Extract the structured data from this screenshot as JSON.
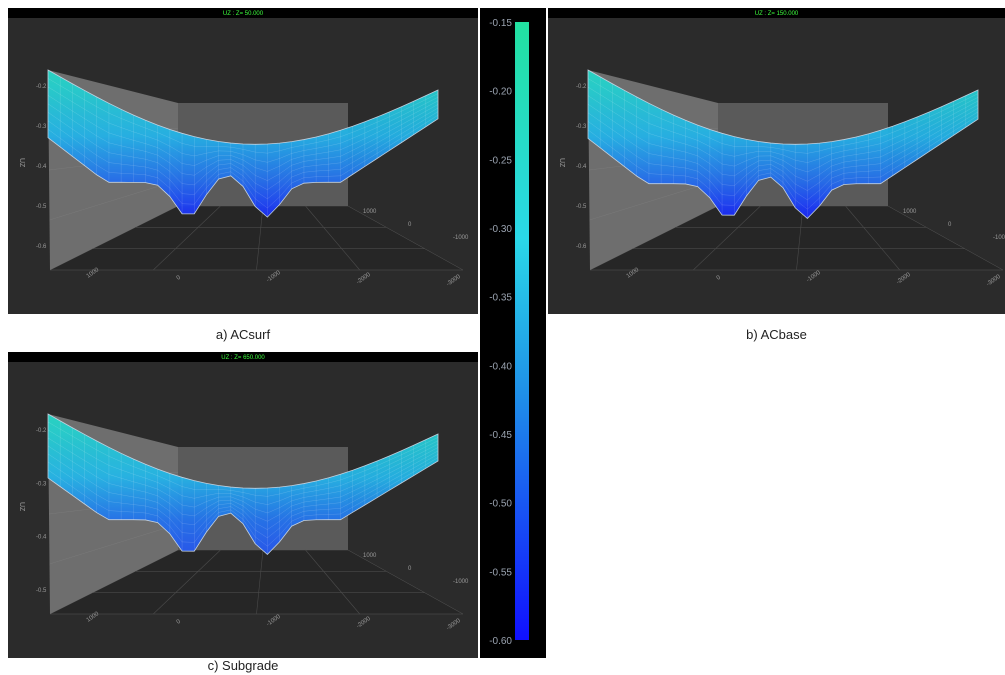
{
  "panels": [
    {
      "id": "a",
      "caption": "a) ACsurf",
      "header": "UZ : Z= 50.000",
      "z_axis_label": "UZ",
      "z_ticks": [
        "-0.2",
        "-0.3",
        "-0.4",
        "-0.5",
        "-0.6"
      ],
      "x_ticks": [
        "1000",
        "0",
        "-1000",
        "-2000",
        "-3000"
      ],
      "y_ticks": [
        "1000",
        "0",
        "-1000"
      ],
      "max_deflection": -0.52,
      "edge_deflection": -0.19
    },
    {
      "id": "b",
      "caption": "b) ACbase",
      "header": "UZ : Z= 150.000",
      "z_axis_label": "UZ",
      "z_ticks": [
        "-0.2",
        "-0.3",
        "-0.4",
        "-0.5",
        "-0.6"
      ],
      "x_ticks": [
        "1000",
        "0",
        "-1000",
        "-2000",
        "-3000"
      ],
      "y_ticks": [
        "1000",
        "0",
        "-1000"
      ],
      "max_deflection": -0.53,
      "edge_deflection": -0.19
    },
    {
      "id": "c",
      "caption": "c) Subgrade",
      "header": "UZ : Z= 650.000",
      "z_axis_label": "UZ",
      "z_ticks": [
        "-0.2",
        "-0.3",
        "-0.4",
        "-0.5"
      ],
      "x_ticks": [
        "1000",
        "0",
        "-1000",
        "-2000",
        "-3000"
      ],
      "y_ticks": [
        "1000",
        "0",
        "-1000"
      ],
      "max_deflection": -0.47,
      "edge_deflection": -0.19
    }
  ],
  "colorbar": {
    "ticks": [
      "-0.15",
      "-0.20",
      "-0.25",
      "-0.30",
      "-0.35",
      "-0.40",
      "-0.45",
      "-0.50",
      "-0.55",
      "-0.60"
    ],
    "min": -0.6,
    "max": -0.15,
    "colors": {
      "top": "#22e0a0",
      "upper": "#2ad8e8",
      "middle": "#1f90e8",
      "bottom": "#1010ff"
    }
  },
  "chart_data": {
    "type": "surface",
    "variable": "UZ",
    "depths": [
      50,
      150,
      650
    ],
    "colorbar_range": [
      -0.6,
      -0.15
    ],
    "panels": [
      {
        "caption": "a) ACsurf",
        "z": 50,
        "min_uz": -0.52,
        "edge_uz": -0.19
      },
      {
        "caption": "b) ACbase",
        "z": 150,
        "min_uz": -0.53,
        "edge_uz": -0.19
      },
      {
        "caption": "c) Subgrade",
        "z": 650,
        "min_uz": -0.47,
        "edge_uz": -0.19
      }
    ]
  }
}
